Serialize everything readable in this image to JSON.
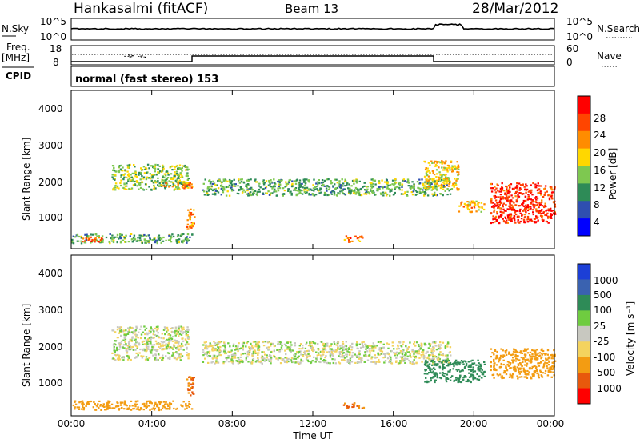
{
  "header": {
    "title": "Hankasalmi (fitACF)",
    "beam": "Beam 13",
    "date": "28/Mar/2012"
  },
  "noise_panel": {
    "left_label": "N.Sky",
    "left_ticks": [
      "10^5",
      "10^0"
    ],
    "right_label": "N.Search",
    "right_ticks": [
      "10^5",
      "10^0"
    ]
  },
  "freq_panel": {
    "left_label_1": "Freq.",
    "left_label_2": "[MHz]",
    "left_ticks": [
      "18",
      "8"
    ],
    "cpid_label": "CPID",
    "right_label": "Nave",
    "right_ticks": [
      "60",
      "0"
    ]
  },
  "mode_text": "normal (fast stereo) 153",
  "power_panel": {
    "ylabel": "Slant Range [km]",
    "yticks": [
      "4000",
      "3000",
      "2000",
      "1000"
    ],
    "colorbar": {
      "label": "Power [dB]",
      "ticks": [
        "28",
        "24",
        "20",
        "16",
        "12",
        "8",
        "4"
      ],
      "colors": [
        "#0000ff",
        "#2f4fb0",
        "#2e8b57",
        "#7ec850",
        "#ffd700",
        "#ff8c00",
        "#ff4500",
        "#ff0000"
      ]
    }
  },
  "velocity_panel": {
    "ylabel": "Slant Range [km]",
    "yticks": [
      "4000",
      "3000",
      "2000",
      "1000"
    ],
    "colorbar": {
      "label": "Velocity [m s⁻¹]",
      "ticks": [
        "1000",
        "500",
        "100",
        "25",
        "-25",
        "-100",
        "-500",
        "-1000"
      ],
      "colors": [
        "#1c3fd6",
        "#3a62b0",
        "#2e8b57",
        "#6fcc40",
        "#c8c8c0",
        "#f4d35e",
        "#f39c12",
        "#e8580c",
        "#ff0000"
      ]
    }
  },
  "xaxis": {
    "label": "Time UT",
    "ticks": [
      "00:00",
      "04:00",
      "08:00",
      "12:00",
      "16:00",
      "20:00",
      "00:00"
    ]
  },
  "chart_data": {
    "type": "heatmap",
    "x_range_hours": [
      0,
      24
    ],
    "y_range_km": [
      180,
      4500
    ],
    "power_regions": [
      {
        "t": [
          0.0,
          6.0
        ],
        "r": [
          350,
          600
        ],
        "dB": 12
      },
      {
        "t": [
          0.5,
          1.5
        ],
        "r": [
          380,
          520
        ],
        "dB": 26
      },
      {
        "t": [
          2.0,
          5.8
        ],
        "r": [
          1800,
          2500
        ],
        "dB": 14
      },
      {
        "t": [
          4.5,
          6.0
        ],
        "r": [
          1850,
          2000
        ],
        "dB": 22
      },
      {
        "t": [
          5.7,
          6.1
        ],
        "r": [
          700,
          1300
        ],
        "dB": 22
      },
      {
        "t": [
          6.5,
          18.8
        ],
        "r": [
          1650,
          2100
        ],
        "dB": 12
      },
      {
        "t": [
          13.5,
          14.5
        ],
        "r": [
          380,
          550
        ],
        "dB": 24
      },
      {
        "t": [
          17.5,
          19.2
        ],
        "r": [
          1800,
          2600
        ],
        "dB": 18
      },
      {
        "t": [
          19.2,
          20.5
        ],
        "r": [
          1200,
          1500
        ],
        "dB": 20
      },
      {
        "t": [
          20.8,
          24.0
        ],
        "r": [
          900,
          2000
        ],
        "dB": 28
      }
    ],
    "velocity_regions": [
      {
        "t": [
          0.0,
          6.0
        ],
        "r": [
          350,
          600
        ],
        "v": -300
      },
      {
        "t": [
          2.0,
          5.8
        ],
        "r": [
          1700,
          2600
        ],
        "v": 0
      },
      {
        "t": [
          5.7,
          6.1
        ],
        "r": [
          700,
          1300
        ],
        "v": -500
      },
      {
        "t": [
          6.5,
          18.8
        ],
        "r": [
          1600,
          2200
        ],
        "v": 0
      },
      {
        "t": [
          13.5,
          14.5
        ],
        "r": [
          380,
          550
        ],
        "v": -500
      },
      {
        "t": [
          17.5,
          20.5
        ],
        "r": [
          1100,
          1700
        ],
        "v": 200
      },
      {
        "t": [
          20.8,
          24.0
        ],
        "r": [
          1200,
          2000
        ],
        "v": -300
      }
    ],
    "power_ticks_db": [
      28,
      24,
      20,
      16,
      12,
      8,
      4
    ],
    "velocity_ticks": [
      1000,
      500,
      100,
      25,
      -25,
      -100,
      -500,
      -1000
    ]
  }
}
